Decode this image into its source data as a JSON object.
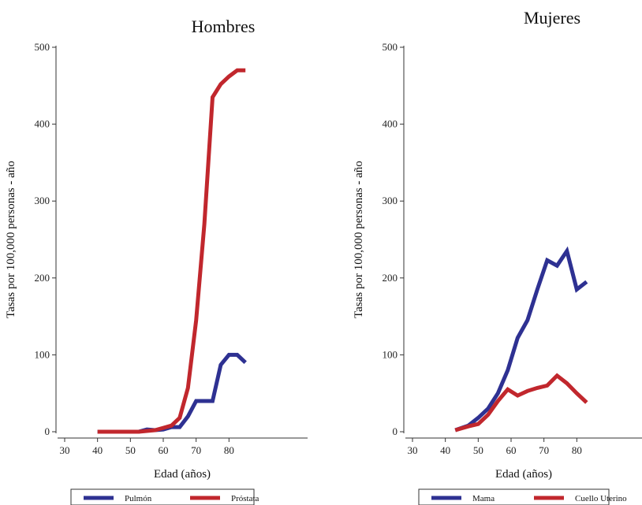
{
  "chart_data": [
    {
      "type": "line",
      "title": "Hombres",
      "xlabel": "Edad (años)",
      "ylabel": "Tasas por 100,000 personas - año",
      "xlim": [
        27,
        100
      ],
      "ylim": [
        -5,
        510
      ],
      "xticks": [
        "30",
        "40",
        "50",
        "60",
        "70",
        "80"
      ],
      "yticks": [
        "0",
        "100",
        "200",
        "300",
        "400",
        "500"
      ],
      "legend_position": "bottom",
      "series": [
        {
          "name": "Pulmón",
          "color": "#2e3192",
          "x": [
            40,
            45,
            50,
            52.5,
            55,
            57.5,
            60,
            62.5,
            65,
            67.5,
            70,
            72.5,
            75,
            77.5,
            80,
            82.5,
            85
          ],
          "y": [
            0,
            0,
            0,
            0,
            3,
            2,
            3,
            6,
            6,
            20,
            40,
            40,
            40,
            87,
            100,
            100,
            90
          ]
        },
        {
          "name": "Próstata",
          "color": "#c1272d",
          "x": [
            40,
            45,
            50,
            52.5,
            55,
            57.5,
            60,
            62.5,
            65,
            67.5,
            70,
            72.5,
            75,
            77.5,
            80,
            82.5,
            85
          ],
          "y": [
            0,
            0,
            0,
            0,
            1,
            2,
            5,
            8,
            18,
            57,
            145,
            270,
            435,
            452,
            462,
            470,
            470
          ]
        }
      ]
    },
    {
      "type": "line",
      "title": "Mujeres",
      "xlabel": "Edad (años)",
      "ylabel": "Tasas por 100,000 personas - año",
      "xlim": [
        27,
        100
      ],
      "ylim": [
        -5,
        510
      ],
      "xticks": [
        "30",
        "40",
        "50",
        "60",
        "70",
        "80"
      ],
      "yticks": [
        "0",
        "100",
        "200",
        "300",
        "400",
        "500"
      ],
      "legend_position": "bottom",
      "series": [
        {
          "name": "Mama",
          "color": "#2e3192",
          "x": [
            43,
            47,
            50,
            53,
            56,
            59,
            62,
            65,
            68,
            71,
            74,
            77,
            80,
            83
          ],
          "y": [
            2,
            8,
            18,
            30,
            50,
            80,
            122,
            145,
            185,
            223,
            216,
            235,
            185,
            195
          ]
        },
        {
          "name": "Cuello Uterino",
          "color": "#c1272d",
          "x": [
            43,
            47,
            50,
            53,
            56,
            59,
            62,
            65,
            68,
            71,
            74,
            77,
            80,
            83
          ],
          "y": [
            2,
            7,
            10,
            22,
            40,
            55,
            47,
            53,
            57,
            60,
            73,
            63,
            50,
            38
          ]
        }
      ]
    }
  ]
}
